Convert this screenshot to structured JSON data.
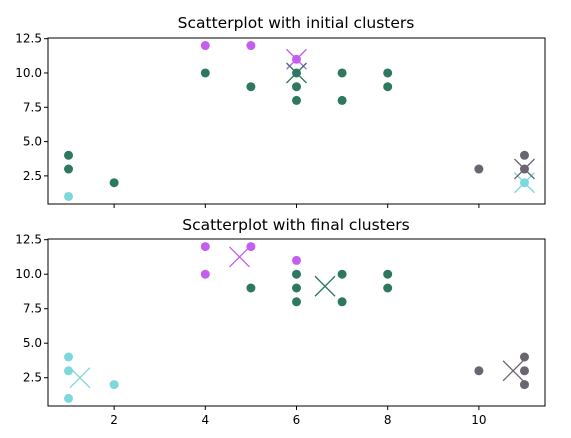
{
  "colors": {
    "purple": "#c35ef0",
    "green": "#2e7862",
    "cyan": "#7cd8dc",
    "gray": "#6a6570"
  },
  "chart_data": [
    {
      "type": "scatter",
      "title": "Scatterplot with initial clusters",
      "xlabel": "",
      "ylabel": "",
      "xlim": [
        0.55,
        11.45
      ],
      "ylim": [
        0.45,
        12.55
      ],
      "x_ticks": [
        2,
        4,
        6,
        8,
        10
      ],
      "x_tick_labels": [
        "",
        "",
        "",
        "",
        ""
      ],
      "y_ticks": [
        2.5,
        5.0,
        7.5,
        10.0,
        12.5
      ],
      "y_tick_labels": [
        "2.5",
        "5.0",
        "7.5",
        "10.0",
        "12.5"
      ],
      "grid": false,
      "points": [
        {
          "x": 1,
          "y": 1,
          "color": "cyan"
        },
        {
          "x": 1,
          "y": 3,
          "color": "green"
        },
        {
          "x": 1,
          "y": 4,
          "color": "green"
        },
        {
          "x": 2,
          "y": 2,
          "color": "green"
        },
        {
          "x": 4,
          "y": 12,
          "color": "purple"
        },
        {
          "x": 5,
          "y": 12,
          "color": "purple"
        },
        {
          "x": 4,
          "y": 10,
          "color": "green"
        },
        {
          "x": 5,
          "y": 9,
          "color": "green"
        },
        {
          "x": 6,
          "y": 11,
          "color": "purple"
        },
        {
          "x": 6,
          "y": 10,
          "color": "green"
        },
        {
          "x": 6,
          "y": 9,
          "color": "green"
        },
        {
          "x": 6,
          "y": 8,
          "color": "green"
        },
        {
          "x": 7,
          "y": 10,
          "color": "green"
        },
        {
          "x": 7,
          "y": 8,
          "color": "green"
        },
        {
          "x": 8,
          "y": 10,
          "color": "green"
        },
        {
          "x": 8,
          "y": 9,
          "color": "green"
        },
        {
          "x": 10,
          "y": 3,
          "color": "gray"
        },
        {
          "x": 11,
          "y": 4,
          "color": "gray"
        },
        {
          "x": 11,
          "y": 3,
          "color": "gray"
        },
        {
          "x": 11,
          "y": 2,
          "color": "cyan"
        }
      ],
      "centroids": [
        {
          "x": 6,
          "y": 11,
          "color": "purple"
        },
        {
          "x": 6,
          "y": 10,
          "color": "green"
        },
        {
          "x": 11,
          "y": 2,
          "color": "cyan"
        },
        {
          "x": 11,
          "y": 3,
          "color": "gray"
        }
      ]
    },
    {
      "type": "scatter",
      "title": "Scatterplot with final clusters",
      "xlabel": "",
      "ylabel": "",
      "xlim": [
        0.55,
        11.45
      ],
      "ylim": [
        0.45,
        12.55
      ],
      "x_ticks": [
        2,
        4,
        6,
        8,
        10
      ],
      "x_tick_labels": [
        "2",
        "4",
        "6",
        "8",
        "10"
      ],
      "y_ticks": [
        2.5,
        5.0,
        7.5,
        10.0,
        12.5
      ],
      "y_tick_labels": [
        "2.5",
        "5.0",
        "7.5",
        "10.0",
        "12.5"
      ],
      "grid": false,
      "points": [
        {
          "x": 1,
          "y": 1,
          "color": "cyan"
        },
        {
          "x": 1,
          "y": 3,
          "color": "cyan"
        },
        {
          "x": 1,
          "y": 4,
          "color": "cyan"
        },
        {
          "x": 2,
          "y": 2,
          "color": "cyan"
        },
        {
          "x": 4,
          "y": 12,
          "color": "purple"
        },
        {
          "x": 4,
          "y": 10,
          "color": "purple"
        },
        {
          "x": 5,
          "y": 12,
          "color": "purple"
        },
        {
          "x": 6,
          "y": 11,
          "color": "purple"
        },
        {
          "x": 5,
          "y": 9,
          "color": "green"
        },
        {
          "x": 6,
          "y": 10,
          "color": "green"
        },
        {
          "x": 6,
          "y": 9,
          "color": "green"
        },
        {
          "x": 6,
          "y": 8,
          "color": "green"
        },
        {
          "x": 7,
          "y": 10,
          "color": "green"
        },
        {
          "x": 7,
          "y": 8,
          "color": "green"
        },
        {
          "x": 8,
          "y": 10,
          "color": "green"
        },
        {
          "x": 8,
          "y": 9,
          "color": "green"
        },
        {
          "x": 10,
          "y": 3,
          "color": "gray"
        },
        {
          "x": 11,
          "y": 4,
          "color": "gray"
        },
        {
          "x": 11,
          "y": 3,
          "color": "gray"
        },
        {
          "x": 11,
          "y": 2,
          "color": "gray"
        }
      ],
      "centroids": [
        {
          "x": 4.75,
          "y": 11.25,
          "color": "purple"
        },
        {
          "x": 6.625,
          "y": 9.125,
          "color": "green"
        },
        {
          "x": 1.25,
          "y": 2.5,
          "color": "cyan"
        },
        {
          "x": 10.75,
          "y": 3.0,
          "color": "gray"
        }
      ]
    }
  ]
}
